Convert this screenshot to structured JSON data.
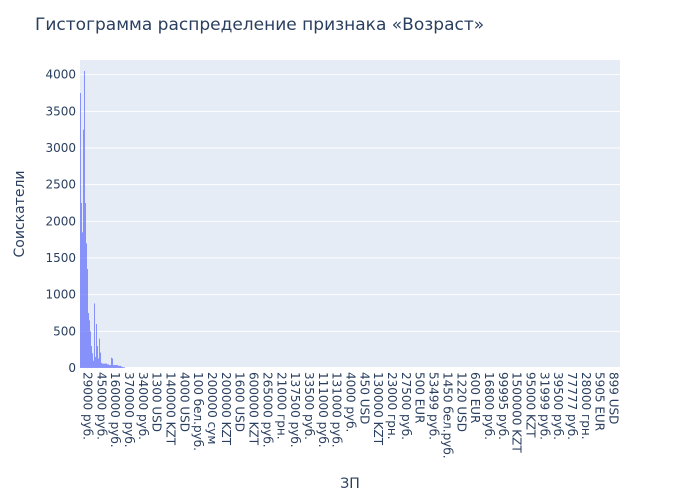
{
  "chart_data": {
    "type": "bar",
    "title": "Гистограмма распределение признака «Возраст»",
    "xlabel": "ЗП",
    "ylabel": "Соискатели",
    "ylim": [
      0,
      4200
    ],
    "yticks": [
      0,
      500,
      1000,
      1500,
      2000,
      2500,
      3000,
      3500,
      4000
    ],
    "category_count": 540,
    "tick_labels": [
      "29000 руб.",
      "45000 руб.",
      "160000 руб.",
      "370000 руб.",
      "34000 руб.",
      "1300 USD",
      "140000 KZT",
      "4000 USD",
      "100 бел.руб.",
      "200000 сум",
      "200000 KZT",
      "1600 USD",
      "600000 KZT",
      "265000 руб.",
      "21000 грн.",
      "137500 руб.",
      "33500 руб.",
      "111000 руб.",
      "131000 руб.",
      "4000 руб.",
      "450 USD",
      "130000 KZT",
      "23000 грн.",
      "27500 руб.",
      "500 EUR",
      "53499 руб.",
      "1450 бел.руб.",
      "1220 USD",
      "600 EUR",
      "16800 руб.",
      "99995 руб.",
      "1500000 KZT",
      "95000 KZT",
      "31999 руб.",
      "39500 руб.",
      "77777 руб.",
      "28000 грн.",
      "5905 EUR",
      "899 USD"
    ],
    "values": [
      3750,
      2250,
      1850,
      3250,
      4050,
      2250,
      1700,
      1350,
      750,
      650,
      500,
      300,
      200,
      100,
      880,
      150,
      600,
      300,
      130,
      400,
      210,
      70,
      60,
      60,
      60,
      60,
      60,
      50,
      50,
      40,
      40,
      140,
      130,
      40,
      40,
      40,
      40,
      40,
      30,
      30,
      30,
      20,
      15,
      10,
      10
    ]
  }
}
